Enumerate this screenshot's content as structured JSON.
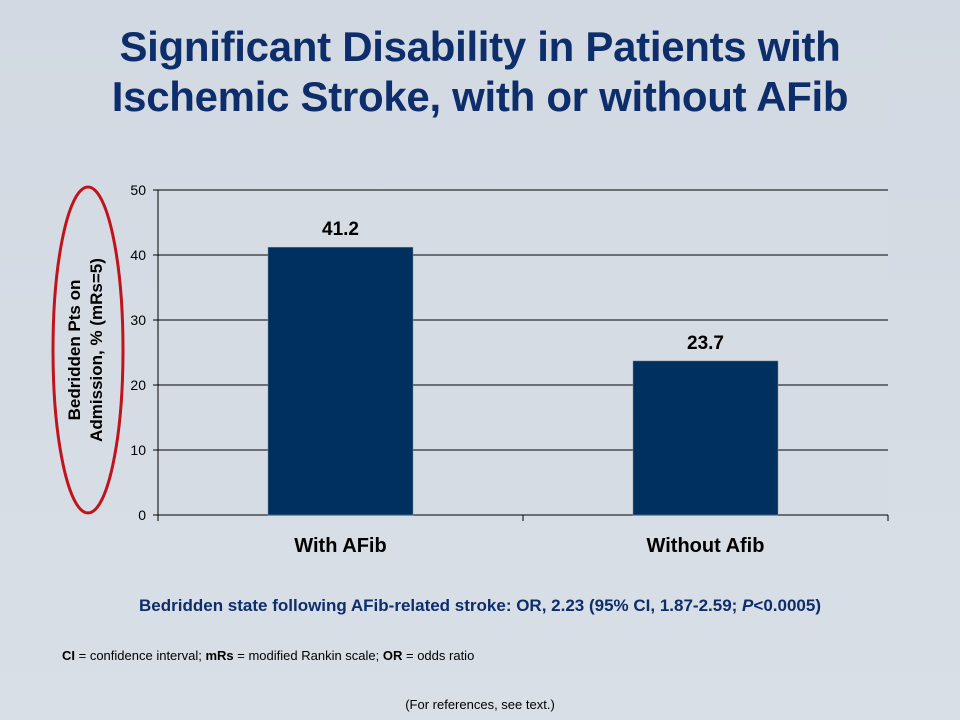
{
  "title": {
    "line1": "Significant Disability in Patients with",
    "line2": "Ischemic Stroke, with or without AFib"
  },
  "chart_data": {
    "type": "bar",
    "categories": [
      "With AFib",
      "Without Afib"
    ],
    "values": [
      41.2,
      23.7
    ],
    "data_labels": [
      "41.2",
      "23.7"
    ],
    "ylabel_lines": [
      "Bedridden Pts on",
      "Admission, % (mRs=5)"
    ],
    "ylim": [
      0,
      50
    ],
    "yticks": [
      0,
      10,
      20,
      30,
      40,
      50
    ],
    "ytick_labels": [
      "0",
      "10",
      "20",
      "30",
      "40",
      "50"
    ],
    "grid": true,
    "bar_color": "#00305e",
    "highlight_color": "#c0141c"
  },
  "statistic": {
    "prefix": "Bedridden state following AFib-related stroke: OR, 2.23 (95% CI, 1.87-2.59; ",
    "p_symbol": "P",
    "suffix": "<0.0005)"
  },
  "abbreviations": [
    {
      "term": "CI",
      "def": "= confidence interval; "
    },
    {
      "term": "mRs",
      "def": "= modified Rankin scale; "
    },
    {
      "term": "OR",
      "def": "= odds ratio"
    }
  ],
  "references": "(For references, see text.)"
}
